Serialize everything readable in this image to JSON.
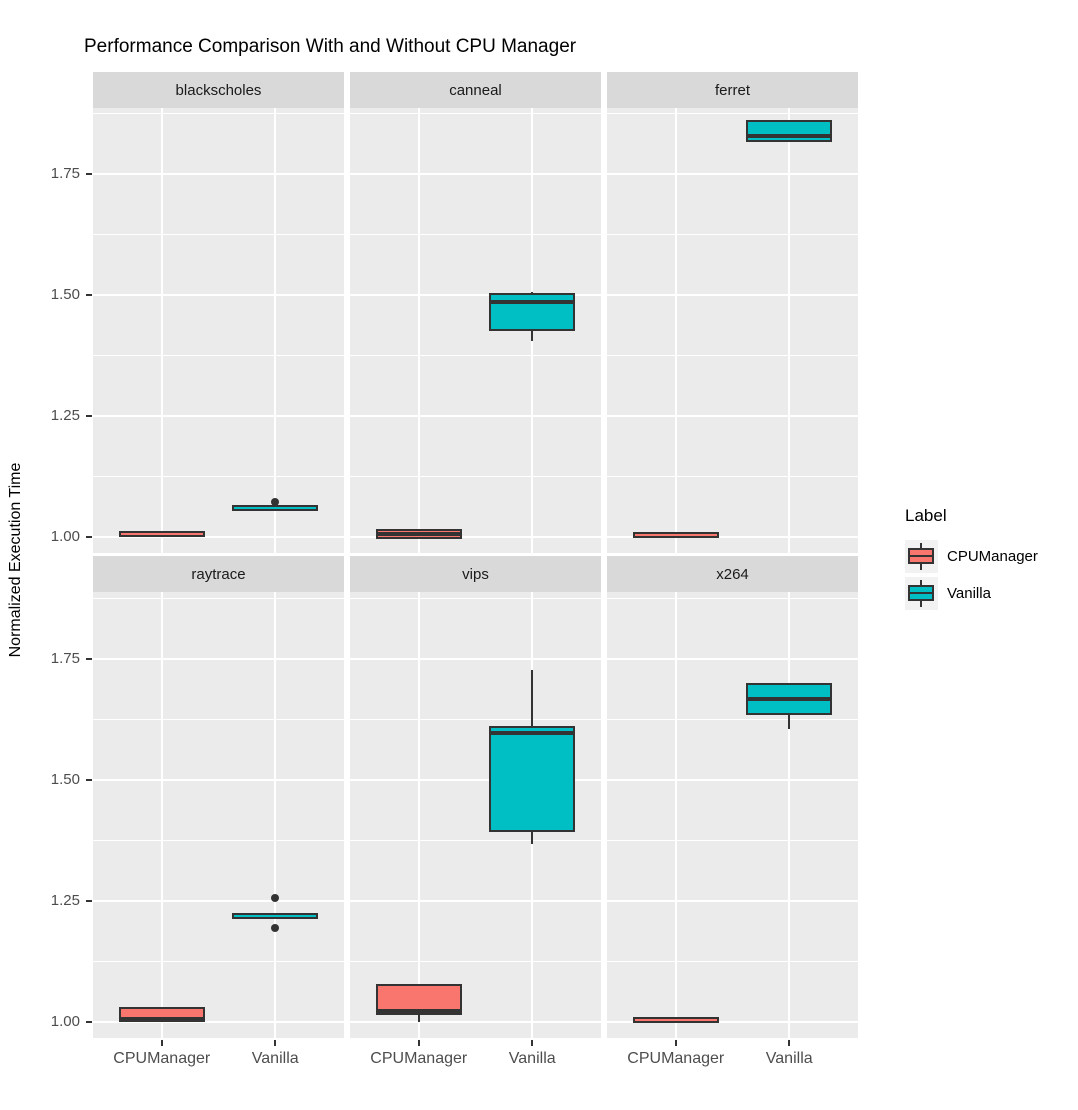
{
  "chart_data": {
    "type": "boxplot",
    "title": "Performance Comparison With and Without CPU Manager",
    "ylabel": "Normalized Execution Time",
    "xlabel": "",
    "categories": [
      "CPUManager",
      "Vanilla"
    ],
    "y_ticks": [
      1.0,
      1.25,
      1.5,
      1.75
    ],
    "y_tick_labels": [
      "1.00",
      "1.25",
      "1.50",
      "1.75"
    ],
    "y_minor_ticks": [
      1.125,
      1.375,
      1.625,
      1.875
    ],
    "ylim": [
      0.967,
      1.888
    ],
    "grid": true,
    "legend_position": "right",
    "legend": {
      "title": "Label",
      "items": [
        {
          "label": "CPUManager",
          "color": "#F8766D"
        },
        {
          "label": "Vanilla",
          "color": "#00BFC4"
        }
      ]
    },
    "series_colors": {
      "CPUManager": "#F8766D",
      "Vanilla": "#00BFC4"
    },
    "facets": [
      {
        "name": "blackscholes",
        "boxes": [
          {
            "category": "CPUManager",
            "min": 1.007,
            "q1": 1.007,
            "median": 1.007,
            "q3": 1.007,
            "max": 1.007,
            "outliers": []
          },
          {
            "category": "Vanilla",
            "min": 1.06,
            "q1": 1.06,
            "median": 1.06,
            "q3": 1.06,
            "max": 1.06,
            "outliers": [
              1.073
            ]
          }
        ]
      },
      {
        "name": "canneal",
        "boxes": [
          {
            "category": "CPUManager",
            "min": 1.0,
            "q1": 1.001,
            "median": 1.006,
            "q3": 1.012,
            "max": 1.013,
            "outliers": []
          },
          {
            "category": "Vanilla",
            "min": 1.405,
            "q1": 1.43,
            "median": 1.485,
            "q3": 1.5,
            "max": 1.507,
            "outliers": []
          }
        ]
      },
      {
        "name": "ferret",
        "boxes": [
          {
            "category": "CPUManager",
            "min": 1.005,
            "q1": 1.005,
            "median": 1.005,
            "q3": 1.005,
            "max": 1.005,
            "outliers": []
          },
          {
            "category": "Vanilla",
            "min": 1.818,
            "q1": 1.82,
            "median": 1.828,
            "q3": 1.858,
            "max": 1.86,
            "outliers": []
          }
        ]
      },
      {
        "name": "raytrace",
        "boxes": [
          {
            "category": "CPUManager",
            "min": 1.002,
            "q1": 1.004,
            "median": 1.007,
            "q3": 1.027,
            "max": 1.028,
            "outliers": []
          },
          {
            "category": "Vanilla",
            "min": 1.22,
            "q1": 1.22,
            "median": 1.22,
            "q3": 1.22,
            "max": 1.22,
            "outliers": [
              1.256,
              1.194
            ]
          }
        ]
      },
      {
        "name": "vips",
        "boxes": [
          {
            "category": "CPUManager",
            "min": 1.0,
            "q1": 1.018,
            "median": 1.022,
            "q3": 1.075,
            "max": 1.077,
            "outliers": []
          },
          {
            "category": "Vanilla",
            "min": 1.368,
            "q1": 1.397,
            "median": 1.597,
            "q3": 1.608,
            "max": 1.727,
            "outliers": []
          }
        ]
      },
      {
        "name": "x264",
        "boxes": [
          {
            "category": "CPUManager",
            "min": 1.005,
            "q1": 1.005,
            "median": 1.005,
            "q3": 1.005,
            "max": 1.005,
            "outliers": []
          },
          {
            "category": "Vanilla",
            "min": 1.606,
            "q1": 1.638,
            "median": 1.667,
            "q3": 1.697,
            "max": 1.698,
            "outliers": []
          }
        ]
      }
    ]
  },
  "colors": {
    "panel_bg": "#EBEBEB",
    "strip_bg": "#D9D9D9",
    "gridline": "#FFFFFF",
    "box_outline": "#333333",
    "axis_text": "#4D4D4D",
    "title_text": "#000000",
    "legend_key_bg": "#F2F2F2",
    "background": "#FFFFFF"
  }
}
